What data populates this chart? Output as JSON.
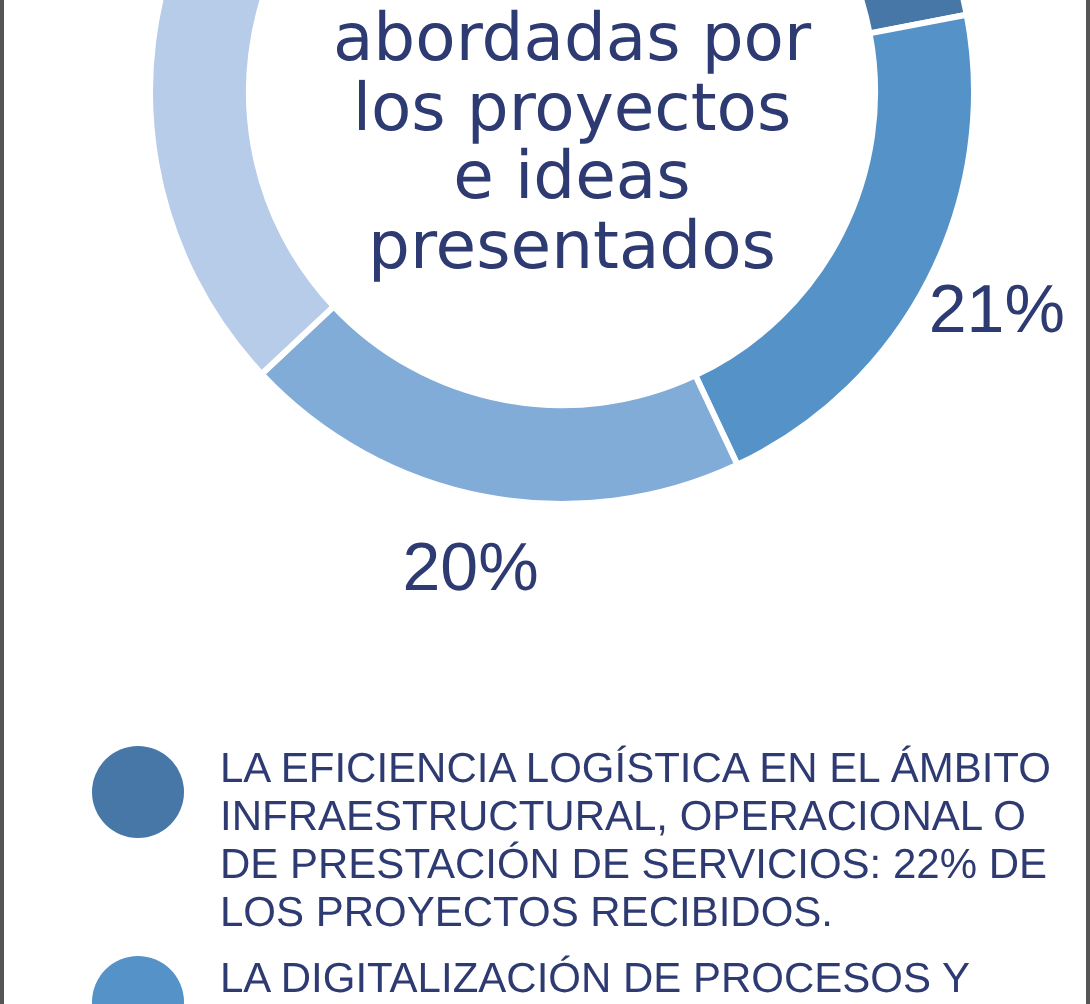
{
  "chart_data": {
    "type": "donut",
    "title": "abordadas por los proyectos e ideas presentados",
    "categories": [
      "LA EFICIENCIA LOGÍSTICA EN EL ÁMBITO INFRAESTRUCTURAL, OPERACIONAL O DE PRESTACIÓN DE SERVICIOS: 22% DE LOS PROYECTOS RECIBIDOS.",
      "LA DIGITALIZACIÓN DE PROCESOS Y",
      null,
      null
    ],
    "values": [
      22,
      21,
      20,
      37
    ],
    "colors": [
      "#4677a7",
      "#5592c7",
      "#82acd8",
      "#b7cce8"
    ],
    "value_labels": [
      null,
      "21%",
      "20%",
      null
    ],
    "legend": "bottom"
  }
}
